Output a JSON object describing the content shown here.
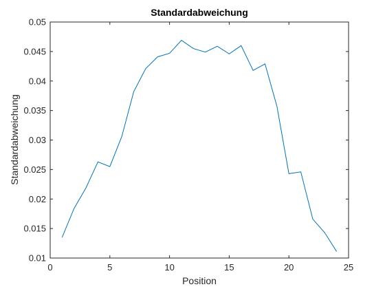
{
  "chart_data": {
    "type": "line",
    "title": "Standardabweichung",
    "xlabel": "Position",
    "ylabel": "Standardabweichung",
    "xlim": [
      0,
      25
    ],
    "ylim": [
      0.01,
      0.05
    ],
    "x_ticks": [
      0,
      5,
      10,
      15,
      20,
      25
    ],
    "y_ticks": [
      0.01,
      0.015,
      0.02,
      0.025,
      0.03,
      0.035,
      0.04,
      0.045,
      0.05
    ],
    "grid": false,
    "series": [
      {
        "color": "#0072BD",
        "x": [
          1,
          2,
          3,
          4,
          5,
          6,
          7,
          8,
          9,
          10,
          11,
          12,
          13,
          14,
          15,
          16,
          17,
          18,
          19,
          20,
          21,
          22,
          23,
          24
        ],
        "y": [
          0.0135,
          0.0184,
          0.0219,
          0.0263,
          0.0255,
          0.0306,
          0.0382,
          0.0421,
          0.0441,
          0.0447,
          0.0469,
          0.0455,
          0.0449,
          0.0459,
          0.0446,
          0.046,
          0.0418,
          0.0429,
          0.0357,
          0.0243,
          0.0246,
          0.0166,
          0.0143,
          0.0111
        ]
      }
    ]
  }
}
